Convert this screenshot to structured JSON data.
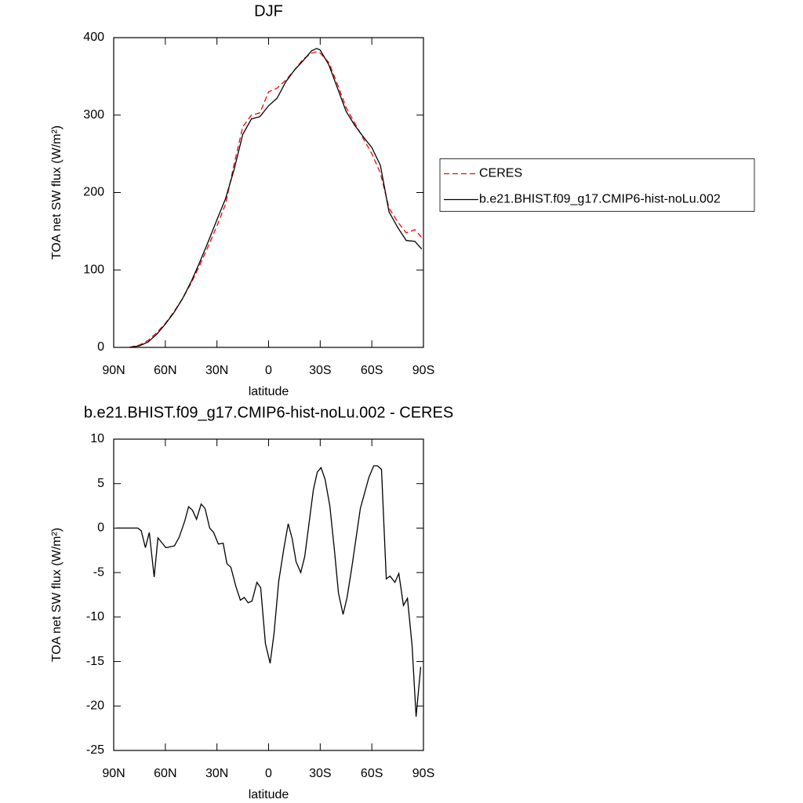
{
  "chart_data": [
    {
      "type": "line",
      "title": "DJF",
      "xlabel": "latitude",
      "ylabel": "TOA net SW flux (W/m²)",
      "x": [
        81,
        75,
        70,
        65,
        60,
        55,
        50,
        45,
        40,
        35,
        30,
        25,
        20,
        15,
        10,
        5,
        0,
        -5,
        -10,
        -15,
        -20,
        -25,
        -28,
        -30,
        -35,
        -40,
        -45,
        -50,
        -55,
        -60,
        -65,
        -70,
        -75,
        -80,
        -85,
        -89
      ],
      "series": [
        {
          "name": "CERES",
          "color": "#ff0000",
          "style": "dashed",
          "values": [
            0,
            3,
            9,
            19,
            31,
            46,
            63,
            83,
            106,
            131,
            157,
            185,
            237,
            285,
            300,
            303,
            330,
            335,
            345,
            358,
            372,
            380,
            382,
            380,
            368,
            340,
            310,
            290,
            270,
            250,
            225,
            180,
            162,
            148,
            152,
            142
          ]
        },
        {
          "name": "b.e21.BHIST.f09_g17.CMIP6-hist-noLu.002",
          "color": "#000000",
          "style": "solid",
          "values": [
            0,
            2,
            7,
            17,
            30,
            45,
            63,
            85,
            110,
            137,
            165,
            192,
            230,
            275,
            295,
            298,
            312,
            322,
            343,
            358,
            370,
            383,
            386,
            384,
            365,
            335,
            305,
            287,
            272,
            258,
            235,
            175,
            155,
            138,
            137,
            127
          ]
        }
      ],
      "xlim": [
        90,
        -90
      ],
      "xticks": [
        {
          "value": 90,
          "label": "90N"
        },
        {
          "value": 60,
          "label": "60N"
        },
        {
          "value": 30,
          "label": "30N"
        },
        0,
        {
          "value": -30,
          "label": "30S"
        },
        {
          "value": -60,
          "label": "60S"
        },
        {
          "value": -90,
          "label": "90S"
        }
      ],
      "ylim": [
        0,
        400
      ],
      "yticks": [
        0,
        100,
        200,
        300,
        400
      ],
      "legend": "right"
    },
    {
      "type": "line",
      "title": "b.e21.BHIST.f09_g17.CMIP6-hist-noLu.002 - CERES",
      "xlabel": "latitude",
      "ylabel": "TOA net SW flux (W/m²)",
      "x": [
        88.4,
        76,
        74,
        71.6,
        69.3,
        66.5,
        64.3,
        59.7,
        54.7,
        51.9,
        48.7,
        46.5,
        44.2,
        41.9,
        39.2,
        36.9,
        34.2,
        31.9,
        29.2,
        26.4,
        24.2,
        21.9,
        19.1,
        16.4,
        14.1,
        11.9,
        9.6,
        6.8,
        4.6,
        1.8,
        -0.9,
        -3.2,
        -5.9,
        -8.7,
        -11.4,
        -13.7,
        -16,
        -18.7,
        -21,
        -26,
        -28.3,
        -30.5,
        -32.8,
        -35.6,
        -38.3,
        -40.6,
        -43.3,
        -45.6,
        -48.3,
        -53.3,
        -58.3,
        -61.1,
        -63.3,
        -65.6,
        -68.4,
        -70.6,
        -73.4,
        -75.7,
        -78.4,
        -80.7,
        -83.4,
        -85.7,
        -88.4
      ],
      "series": [
        {
          "name": "b.e21.BHIST.f09_g17.CMIP6-hist-noLu.002 - CERES",
          "color": "#000000",
          "style": "solid",
          "values": [
            0,
            0,
            -0.3,
            -2.2,
            -0.5,
            -5.5,
            -1.1,
            -2.2,
            -2.0,
            -1.0,
            0.8,
            2.4,
            2.0,
            1.0,
            2.7,
            2.2,
            0,
            -0.5,
            -1.8,
            -1.7,
            -4.0,
            -4.4,
            -6.5,
            -8.1,
            -7.8,
            -8.4,
            -8.2,
            -6.1,
            -6.7,
            -13.0,
            -15.2,
            -11.8,
            -6.0,
            -2.5,
            0.5,
            -1.2,
            -3.8,
            -5.0,
            -3.2,
            4.3,
            6.3,
            6.8,
            5.5,
            2.5,
            -2.5,
            -7.3,
            -9.7,
            -7.8,
            -4.5,
            2.2,
            5.7,
            7.0,
            7.0,
            6.6,
            -5.7,
            -5.4,
            -6.1,
            -5.1,
            -8.7,
            -7.9,
            -13.2,
            -21.2,
            -15.6
          ]
        }
      ],
      "xlim": [
        90,
        -90
      ],
      "xticks": [
        {
          "value": 90,
          "label": "90N"
        },
        {
          "value": 60,
          "label": "60N"
        },
        {
          "value": 30,
          "label": "30N"
        },
        0,
        {
          "value": -30,
          "label": "30S"
        },
        {
          "value": -60,
          "label": "60S"
        },
        {
          "value": -90,
          "label": "90S"
        }
      ],
      "ylim": [
        -25,
        10
      ],
      "yticks": [
        -25,
        -20,
        -15,
        -10,
        -5,
        0,
        5,
        10
      ]
    }
  ]
}
